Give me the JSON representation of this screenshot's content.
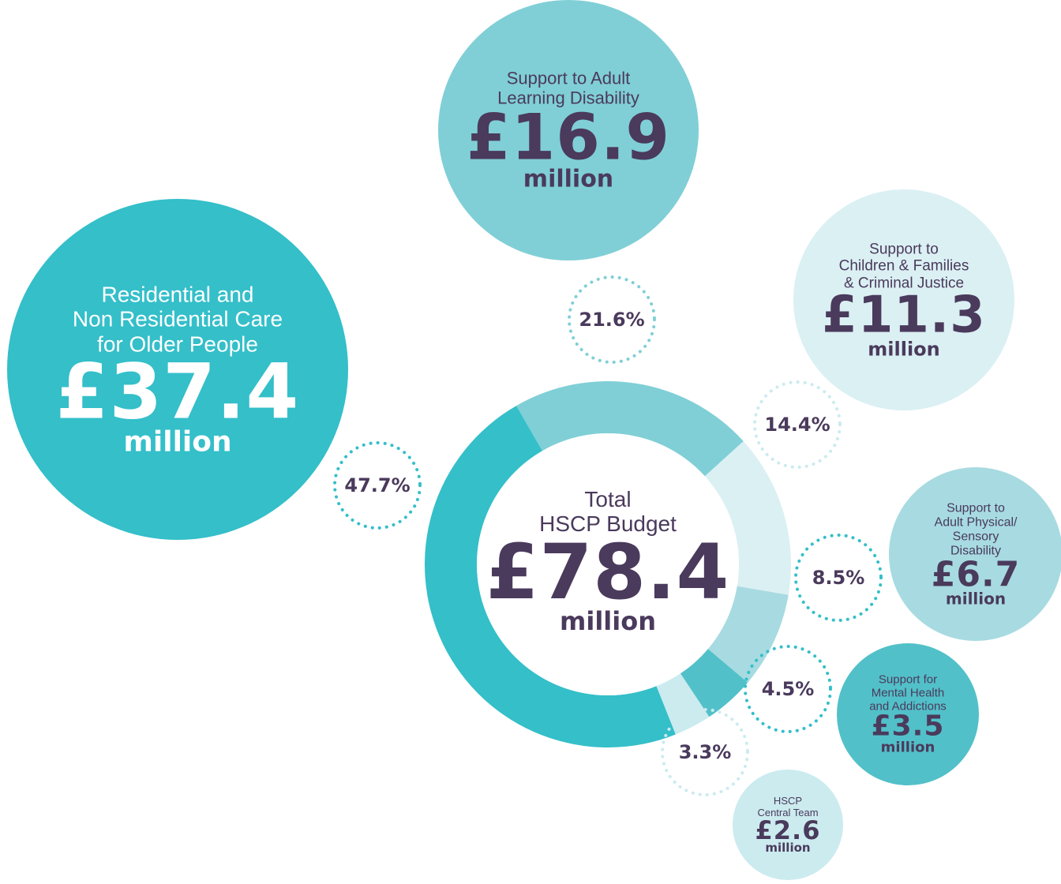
{
  "chart_data": {
    "type": "donut",
    "center_title": "Total\nHSCP Budget",
    "total": 78.4,
    "total_label": "£78.4",
    "unit": "million",
    "categories": [
      "Support to Adult\nLearning Disability",
      "Support to\nChildren & Families\n& Criminal Justice",
      "Support to\nAdult Physical/\nSensory Disability",
      "Support for\nMental Health\nand Addictions",
      "HSCP\nCentral Team",
      "Residential and\nNon Residential Care\nfor Older People"
    ],
    "values": [
      21.6,
      14.4,
      8.5,
      4.5,
      3.3,
      47.7
    ],
    "value_labels": [
      "21.6%",
      "14.4%",
      "8.5%",
      "4.5%",
      "3.3%",
      "47.7%"
    ],
    "amounts": [
      16.9,
      11.3,
      6.7,
      3.5,
      2.6,
      37.4
    ],
    "amount_labels": [
      "£16.9",
      "£11.3",
      "£6.7",
      "£3.5",
      "£2.6",
      "£37.4"
    ],
    "colors": [
      "#80cfd6",
      "#dbf0f3",
      "#a7dbe1",
      "#52c0c9",
      "#cbebef",
      "#34bfc9"
    ]
  }
}
